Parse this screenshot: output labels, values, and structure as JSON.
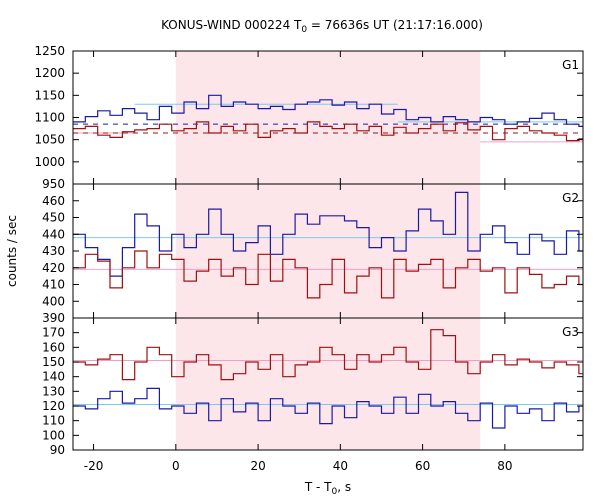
{
  "chart_data": {
    "type": "line",
    "title": "KONUS-WIND 000224 T",
    "title_sub": "0",
    "title_rest": " = 76636s UT (21:17:16.000)",
    "xlabel": "T - T",
    "xlabel_sub": "0",
    "xlabel_rest": ", s",
    "ylabel": "counts / sec",
    "xlim": [
      -25,
      99
    ],
    "xticks": [
      -20,
      0,
      20,
      40,
      60,
      80
    ],
    "shaded_interval": [
      0,
      74
    ],
    "colors": {
      "blue_series": "#1a1aa6",
      "red_series": "#a01010",
      "blue_background": "#7ec8f0",
      "red_background": "#f0a0c8",
      "shade": "#fde6ea"
    },
    "bin_edges": [
      -25,
      -22,
      -19,
      -16,
      -13,
      -10,
      -7,
      -4,
      -1,
      2,
      5,
      8,
      11,
      14,
      17,
      20,
      23,
      26,
      29,
      32,
      35,
      38,
      41,
      44,
      47,
      50,
      53,
      56,
      59,
      62,
      65,
      68,
      71,
      74,
      77,
      80,
      83,
      86,
      89,
      92,
      95,
      98,
      99
    ],
    "panels": [
      {
        "label": "G1",
        "ylim": [
          950,
          1250
        ],
        "yticks": [
          950,
          1000,
          1050,
          1100,
          1150,
          1200,
          1250
        ],
        "series": [
          {
            "color_key": "blue_series",
            "values": [
              1090,
              1102,
              1115,
              1105,
              1120,
              1110,
              1095,
              1125,
              1110,
              1135,
              1120,
              1150,
              1125,
              1135,
              1130,
              1120,
              1125,
              1118,
              1130,
              1135,
              1140,
              1128,
              1135,
              1120,
              1130,
              1108,
              1118,
              1095,
              1100,
              1090,
              1102,
              1095,
              1090,
              1100,
              1095,
              1085,
              1090,
              1098,
              1110,
              1095,
              1085,
              1080
            ]
          },
          {
            "color_key": "red_series",
            "values": [
              1075,
              1080,
              1060,
              1055,
              1068,
              1072,
              1075,
              1085,
              1070,
              1075,
              1090,
              1065,
              1080,
              1070,
              1085,
              1055,
              1070,
              1075,
              1065,
              1090,
              1080,
              1075,
              1085,
              1070,
              1080,
              1060,
              1078,
              1065,
              1075,
              1085,
              1070,
              1088,
              1072,
              1080,
              1050,
              1075,
              1080,
              1070,
              1065,
              1060,
              1048,
              1052
            ]
          }
        ],
        "background_lines": [
          {
            "color_key": "blue_background",
            "x_range": [
              -10,
              54
            ],
            "y": 1130
          },
          {
            "color_key": "blue_background",
            "x_range": [
              54,
              99
            ],
            "y": 1090
          },
          {
            "color_key": "red_background",
            "x_range": [
              -25,
              -10
            ],
            "y": 1065
          },
          {
            "color_key": "red_background",
            "x_range": [
              74,
              99
            ],
            "y": 1045
          }
        ],
        "dashed_lines": [
          {
            "color_key": "blue_series",
            "y": 1085
          },
          {
            "color_key": "red_series",
            "y": 1065
          }
        ]
      },
      {
        "label": "G2",
        "ylim": [
          390,
          470
        ],
        "yticks": [
          390,
          400,
          410,
          420,
          430,
          440,
          450,
          460
        ],
        "series": [
          {
            "color_key": "blue_series",
            "values": [
              440,
              432,
              425,
              415,
              432,
              452,
              445,
              430,
              440,
              432,
              440,
              455,
              440,
              430,
              435,
              445,
              428,
              440,
              452,
              446,
              451,
              451,
              448,
              444,
              432,
              438,
              430,
              442,
              455,
              448,
              440,
              465,
              430,
              440,
              445,
              435,
              428,
              440,
              436,
              428,
              442,
              430
            ]
          },
          {
            "color_key": "red_series",
            "values": [
              420,
              428,
              424,
              408,
              420,
              430,
              420,
              428,
              425,
              412,
              418,
              425,
              415,
              420,
              410,
              428,
              412,
              425,
              420,
              402,
              410,
              425,
              405,
              415,
              420,
              402,
              425,
              418,
              422,
              425,
              408,
              420,
              425,
              418,
              420,
              405,
              420,
              416,
              408,
              410,
              415,
              410
            ]
          }
        ],
        "background_lines": [
          {
            "color_key": "blue_background",
            "x_range": [
              -25,
              99
            ],
            "y": 438
          },
          {
            "color_key": "red_background",
            "x_range": [
              -25,
              99
            ],
            "y": 419
          }
        ]
      },
      {
        "label": "G3",
        "ylim": [
          90,
          180
        ],
        "yticks": [
          90,
          100,
          110,
          120,
          130,
          140,
          150,
          160,
          170
        ],
        "series": [
          {
            "color_key": "blue_series",
            "values": [
              120,
              118,
              125,
              130,
              122,
              125,
              132,
              118,
              120,
              115,
              122,
              110,
              125,
              116,
              122,
              110,
              125,
              120,
              115,
              122,
              108,
              120,
              112,
              123,
              120,
              115,
              126,
              115,
              128,
              120,
              123,
              115,
              110,
              122,
              105,
              120,
              115,
              118,
              110,
              122,
              116,
              120
            ]
          },
          {
            "color_key": "red_series",
            "values": [
              150,
              148,
              152,
              155,
              138,
              150,
              160,
              155,
              140,
              150,
              155,
              148,
              138,
              142,
              150,
              145,
              155,
              140,
              148,
              150,
              160,
              155,
              145,
              155,
              150,
              155,
              160,
              150,
              145,
              172,
              168,
              150,
              142,
              150,
              155,
              148,
              152,
              150,
              146,
              150,
              148,
              142
            ]
          }
        ],
        "background_lines": [
          {
            "color_key": "blue_background",
            "x_range": [
              -25,
              99
            ],
            "y": 121
          },
          {
            "color_key": "red_background",
            "x_range": [
              -25,
              99
            ],
            "y": 151
          }
        ]
      }
    ]
  }
}
